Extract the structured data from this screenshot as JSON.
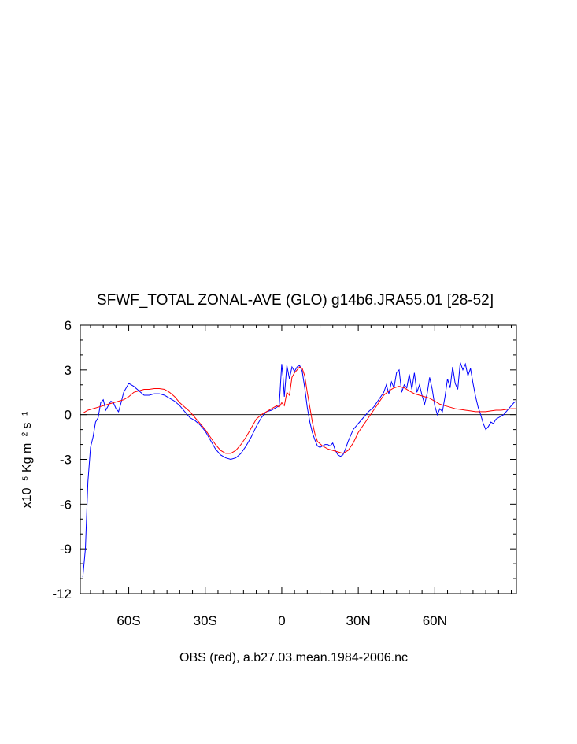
{
  "chart_data": {
    "type": "line",
    "title": "SFWF_TOTAL ZONAL-AVE (GLO) g14b6.JRA55.01 [28-52]",
    "xlabel": "OBS (red), a.b27.03.mean.1984-2006.nc",
    "ylabel": "x10⁻⁵ Kg m⁻² s⁻¹",
    "ylim": [
      -12,
      6
    ],
    "xlim": [
      -79,
      92
    ],
    "yticks": [
      6,
      3,
      0,
      -3,
      -6,
      -9,
      -12
    ],
    "ytick_labels": [
      "6",
      "3",
      "0",
      "-3",
      "-6",
      "-9",
      "-12"
    ],
    "xticks": [
      -60,
      -30,
      0,
      30,
      60
    ],
    "xtick_labels": [
      "60S",
      "30S",
      "0",
      "30N",
      "60N"
    ],
    "grid": false,
    "zero_line": true,
    "series": [
      {
        "color": "#0000ff",
        "x": [
          -78,
          -77,
          -76,
          -75,
          -74,
          -73,
          -72,
          -71,
          -70,
          -69,
          -68,
          -67,
          -66,
          -65,
          -64,
          -63,
          -62,
          -60,
          -58,
          -56,
          -54,
          -52,
          -50,
          -48,
          -46,
          -44,
          -42,
          -40,
          -38,
          -36,
          -34,
          -32,
          -30,
          -28,
          -26,
          -24,
          -22,
          -20,
          -18,
          -16,
          -14,
          -12,
          -10,
          -8,
          -6,
          -4,
          -2,
          -1,
          0,
          0.5,
          1,
          2,
          3,
          4,
          5,
          6,
          7,
          8,
          9,
          10,
          11,
          12,
          13,
          14,
          15,
          16,
          17,
          18,
          19,
          20,
          21,
          22,
          23,
          24,
          25,
          26,
          27,
          28,
          29,
          30,
          32,
          34,
          36,
          38,
          40,
          41,
          42,
          43,
          44,
          45,
          46,
          47,
          48,
          49,
          50,
          51,
          52,
          53,
          54,
          55,
          56,
          57,
          58,
          59,
          60,
          61,
          62,
          63,
          64,
          65,
          66,
          67,
          68,
          69,
          70,
          71,
          72,
          73,
          74,
          75,
          76,
          77,
          78,
          79,
          80,
          81,
          82,
          83,
          84,
          85,
          86,
          87,
          88,
          89,
          90,
          91,
          92
        ],
        "y": [
          -10.9,
          -9,
          -4.5,
          -2.2,
          -1.5,
          -0.5,
          -0.2,
          0.8,
          1.0,
          0.3,
          0.6,
          0.9,
          0.8,
          0.4,
          0.2,
          0.8,
          1.5,
          2.1,
          1.9,
          1.6,
          1.3,
          1.3,
          1.4,
          1.4,
          1.3,
          1.1,
          0.9,
          0.6,
          0.2,
          -0.2,
          -0.4,
          -0.7,
          -1.1,
          -1.7,
          -2.3,
          -2.7,
          -2.9,
          -3.0,
          -2.9,
          -2.6,
          -2.1,
          -1.5,
          -0.8,
          -0.2,
          0.2,
          0.3,
          0.5,
          0.6,
          3.4,
          2.5,
          1.2,
          3.3,
          2.4,
          3.2,
          2.9,
          3.2,
          3.3,
          2.9,
          1.8,
          0.5,
          -0.5,
          -1.2,
          -1.7,
          -2.1,
          -2.2,
          -2.1,
          -2.0,
          -2.0,
          -2.1,
          -1.9,
          -2.4,
          -2.7,
          -2.8,
          -2.7,
          -2.3,
          -1.8,
          -1.4,
          -1.0,
          -0.8,
          -0.6,
          -0.2,
          0.2,
          0.5,
          1.0,
          1.5,
          2.0,
          1.4,
          2.2,
          1.8,
          2.8,
          3.0,
          1.5,
          2.0,
          1.8,
          2.7,
          1.7,
          2.8,
          1.5,
          2.0,
          1.3,
          0.7,
          1.4,
          2.5,
          1.7,
          0.6,
          0.0,
          0.4,
          0.2,
          1.2,
          2.4,
          1.8,
          3.2,
          2.1,
          1.7,
          3.5,
          3.0,
          3.4,
          2.6,
          3.1,
          2.1,
          1.2,
          0.5,
          0.0,
          -0.6,
          -1.0,
          -0.8,
          -0.5,
          -0.6,
          -0.3,
          -0.2,
          -0.1,
          0.0,
          0.2,
          0.4,
          0.6,
          0.8,
          0.9
        ]
      },
      {
        "color": "#ff0000",
        "x": [
          -78,
          -76,
          -74,
          -72,
          -70,
          -68,
          -66,
          -64,
          -62,
          -60,
          -58,
          -56,
          -54,
          -52,
          -50,
          -48,
          -46,
          -44,
          -42,
          -40,
          -38,
          -36,
          -34,
          -32,
          -30,
          -28,
          -26,
          -24,
          -22,
          -20,
          -18,
          -16,
          -14,
          -12,
          -10,
          -8,
          -6,
          -4,
          -2,
          -1,
          0,
          1,
          2,
          3,
          4,
          5,
          6,
          7,
          8,
          9,
          10,
          11,
          12,
          13,
          14,
          16,
          18,
          20,
          22,
          24,
          26,
          28,
          30,
          32,
          34,
          36,
          38,
          40,
          42,
          44,
          46,
          48,
          50,
          52,
          54,
          56,
          58,
          60,
          62,
          64,
          66,
          68,
          70,
          72,
          74,
          76,
          78,
          80,
          82,
          84,
          86,
          88,
          90,
          92
        ],
        "y": [
          0.1,
          0.3,
          0.4,
          0.5,
          0.6,
          0.7,
          0.8,
          0.9,
          1.0,
          1.2,
          1.5,
          1.6,
          1.7,
          1.7,
          1.75,
          1.75,
          1.7,
          1.5,
          1.2,
          0.8,
          0.5,
          0.2,
          -0.2,
          -0.6,
          -1.0,
          -1.5,
          -2.0,
          -2.4,
          -2.6,
          -2.6,
          -2.4,
          -2.0,
          -1.5,
          -0.9,
          -0.3,
          0.0,
          0.2,
          0.4,
          0.6,
          0.5,
          0.8,
          0.6,
          1.5,
          1.3,
          2.5,
          2.8,
          3.0,
          3.2,
          3.1,
          2.6,
          1.5,
          0.5,
          -0.5,
          -1.3,
          -1.8,
          -2.1,
          -2.3,
          -2.4,
          -2.5,
          -2.6,
          -2.4,
          -1.9,
          -1.2,
          -0.7,
          -0.2,
          0.3,
          0.8,
          1.3,
          1.6,
          1.8,
          1.9,
          1.8,
          1.6,
          1.4,
          1.3,
          1.2,
          1.1,
          0.9,
          0.7,
          0.6,
          0.5,
          0.4,
          0.35,
          0.3,
          0.25,
          0.2,
          0.2,
          0.2,
          0.25,
          0.3,
          0.3,
          0.35,
          0.4,
          0.4
        ]
      }
    ]
  }
}
